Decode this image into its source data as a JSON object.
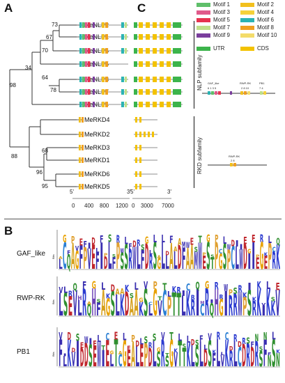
{
  "panels": {
    "a": "A",
    "b": "B",
    "c": "C"
  },
  "genes": [
    "MeNLP2",
    "MeNLP1",
    "MeNLP6",
    "MeNLP5",
    "MeNLP3",
    "MeNLP7",
    "MeNLP4",
    "MeRKD4",
    "MeRKD2",
    "MeRKD3",
    "MeRKD1",
    "MeRKD6",
    "MeRKD5"
  ],
  "bootstrap": [
    "73",
    "67",
    "70",
    "34",
    "64",
    "78",
    "98",
    "68",
    "88",
    "96",
    "95"
  ],
  "legend": {
    "motifs": [
      "Motif 1",
      "Motif 2",
      "Motif 3",
      "Motif 4",
      "Motif 5",
      "Motif 6",
      "Motif 7",
      "Motif 8",
      "Motif 9",
      "Motif 10"
    ],
    "utr": "UTR",
    "cds": "CDS",
    "colors": {
      "motif1": "#5fbf6a",
      "motif2": "#f2c01e",
      "motif3": "#e05a8a",
      "motif4": "#f5d23a",
      "motif5": "#e6334f",
      "motif6": "#2bb3b3",
      "motif7": "#bfe08a",
      "motif8": "#f0a020",
      "motif9": "#7a3e9d",
      "motif10": "#f4dc6a",
      "utr": "#3cb44b",
      "cds": "#f3c200"
    }
  },
  "subfamilies": {
    "nlp": "NLP subfamily",
    "rkd": "RKD subfamily"
  },
  "domains_nlp": {
    "gaf": "GAF_like",
    "rwp": "RWP-RK",
    "pb1": "PB1",
    "gaf_nums": "6 1 3 5",
    "rwp_nums": "2 8 10",
    "pb1_nums": "7 4"
  },
  "domains_rkd": {
    "rwp": "RWP-RK",
    "rwp_nums": "2 8"
  },
  "axis_motif": {
    "left": "5'",
    "right": "3'",
    "ticks": [
      "0",
      "400",
      "800",
      "1200"
    ]
  },
  "axis_gene": {
    "left": "5'",
    "right": "3'",
    "ticks": [
      "0",
      "3000",
      "7000"
    ]
  },
  "logos": [
    {
      "name": "GAF_like",
      "seq": "LCQAGFPVEFIDLFPSSRWLFDRSGLLALDFAAMWESTPGSPCLWDIIEGEPRK"
    },
    {
      "name": "RWP-RK",
      "seq": "LSEVLRQHFAGSLKDAAKSLGVCPTTLKRICRQHGIRRWPSRKIKKV"
    },
    {
      "name": "PB1",
      "seq": "FLKVIDDSEWIELTCGEALEPDLSRSGVTTKLSLDSFLVKRLCDRDRSFNSN"
    }
  ],
  "logo_axis": "Bits"
}
